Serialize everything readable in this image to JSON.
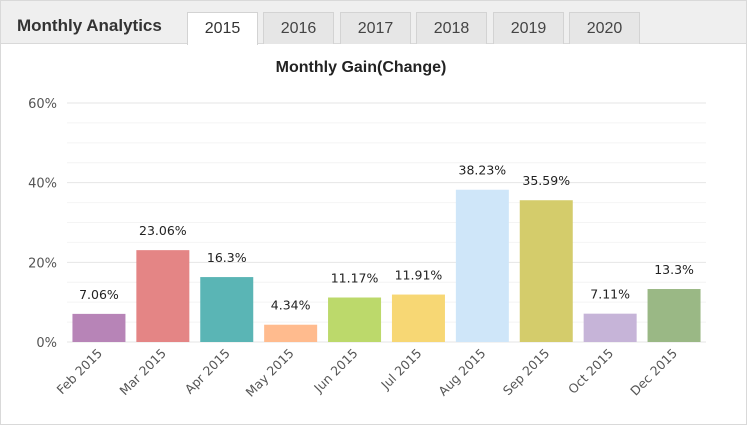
{
  "header": {
    "title": "Monthly Analytics",
    "tabs": [
      {
        "label": "2015",
        "active": true
      },
      {
        "label": "2016",
        "active": false
      },
      {
        "label": "2017",
        "active": false
      },
      {
        "label": "2018",
        "active": false
      },
      {
        "label": "2019",
        "active": false
      },
      {
        "label": "2020",
        "active": false
      }
    ]
  },
  "chart_data": {
    "type": "bar",
    "title": "Monthly Gain(Change)",
    "xlabel": "",
    "ylabel": "",
    "ylim": [
      0,
      60
    ],
    "yticks": [
      "0%",
      "20%",
      "40%",
      "60%"
    ],
    "grid": true,
    "categories": [
      "Feb 2015",
      "Mar 2015",
      "Apr 2015",
      "May 2015",
      "Jun 2015",
      "Jul 2015",
      "Aug 2015",
      "Sep 2015",
      "Oct 2015",
      "Dec 2015"
    ],
    "values": [
      7.06,
      23.06,
      16.3,
      4.34,
      11.17,
      11.91,
      38.23,
      35.59,
      7.11,
      13.3
    ],
    "data_labels": [
      "7.06%",
      "23.06%",
      "16.3%",
      "4.34%",
      "11.17%",
      "11.91%",
      "38.23%",
      "35.59%",
      "7.11%",
      "13.3%"
    ],
    "colors": [
      "#b784b7",
      "#e48585",
      "#5ab5b5",
      "#ffbb8e",
      "#bcd96b",
      "#f7d774",
      "#cfe6f9",
      "#d4cc6b",
      "#c6b4d8",
      "#9ab885"
    ]
  }
}
